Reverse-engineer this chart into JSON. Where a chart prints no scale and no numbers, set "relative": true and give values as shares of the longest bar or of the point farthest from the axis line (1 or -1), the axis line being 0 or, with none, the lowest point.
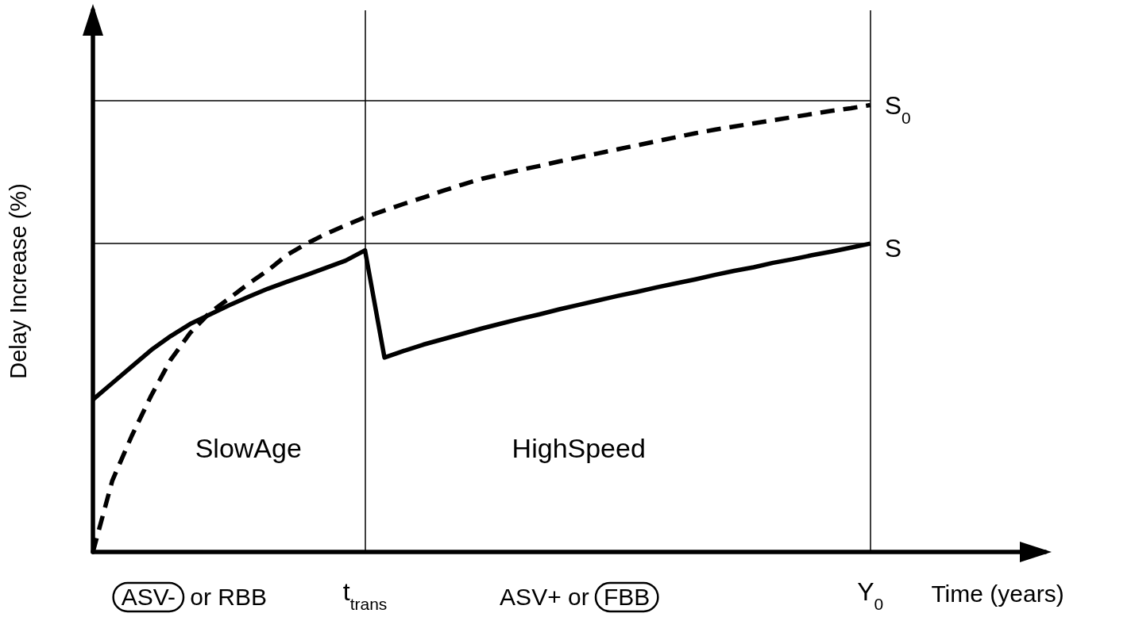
{
  "chart_data": {
    "type": "line",
    "relative": true,
    "xlabel": "Time (years)",
    "ylabel": "Delay Increase (%)",
    "grid": "x",
    "categories": [
      null,
      null,
      null,
      null,
      null,
      null,
      null,
      null,
      null,
      null,
      null,
      null,
      null,
      null,
      "t$_{trans}$",
      null,
      null,
      null,
      null,
      null,
      null,
      null,
      null,
      null,
      null,
      null,
      null,
      null,
      null,
      null,
      null,
      null,
      null,
      null,
      null,
      null,
      null,
      null,
      null,
      null,
      "Y$_{0}$",
      null,
      null,
      null,
      null,
      null,
      null,
      null,
      null,
      null
    ],
    "series": [
      {
        "color": "#000000",
        "line_style": "solid",
        "values": [
          0.341,
          0.378,
          0.415,
          0.452,
          0.483,
          0.51,
          0.531,
          0.552,
          0.571,
          0.589,
          0.605,
          0.62,
          0.636,
          0.652,
          0.675,
          0.435,
          0.45,
          0.464,
          0.476,
          0.488,
          0.5,
          0.511,
          0.522,
          0.532,
          0.543,
          0.553,
          0.563,
          0.573,
          0.582,
          0.592,
          0.601,
          0.61,
          0.62,
          0.629,
          0.637,
          0.647,
          0.655,
          0.664,
          0.672,
          0.681,
          0.69,
          null,
          null,
          null,
          null,
          null,
          null,
          null,
          null,
          null
        ]
      },
      {
        "color": "#000000",
        "line_style": "dashed",
        "values": [
          0,
          0.16,
          0.26,
          0.35,
          0.43,
          0.49,
          0.535,
          0.567,
          0.6,
          0.63,
          0.665,
          0.69,
          0.712,
          0.731,
          0.749,
          0.764,
          0.779,
          0.793,
          0.808,
          0.822,
          0.835,
          0.845,
          0.855,
          0.864,
          0.874,
          0.883,
          0.892,
          0.901,
          0.91,
          0.919,
          0.928,
          0.937,
          0.945,
          0.952,
          0.959,
          0.966,
          0.973,
          0.98,
          0.987,
          0.993,
          1,
          null,
          null,
          null,
          null,
          null,
          null,
          null,
          null,
          null
        ]
      }
    ],
    "ref_lines": [
      {
        "axis": "y",
        "value": 1.01,
        "label": "S$_{0}$",
        "color": "#000000"
      },
      {
        "axis": "y",
        "value": 0.69,
        "label": "S",
        "color": "#000000"
      }
    ],
    "annotations": [
      "SlowAge",
      "HighSpeed",
      "ASV- or RBB",
      "ASV+ or FBB"
    ]
  }
}
